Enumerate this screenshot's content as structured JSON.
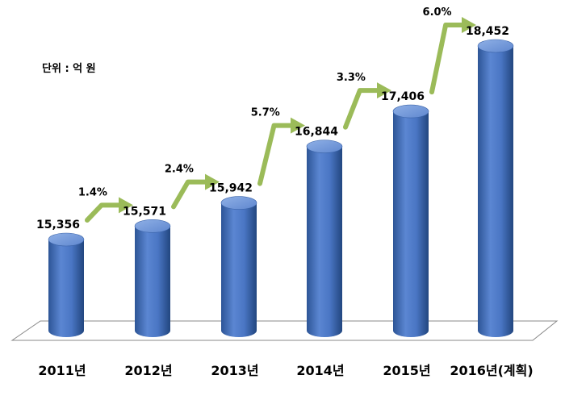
{
  "chart_data": {
    "type": "bar",
    "unit_label": "단위 : 억 원",
    "categories": [
      "2011년",
      "2012년",
      "2013년",
      "2014년",
      "2015년",
      "2016년(계획)"
    ],
    "values": [
      15356,
      15571,
      15942,
      16844,
      17406,
      18452
    ],
    "value_labels": [
      "15,356",
      "15,571",
      "15,942",
      "16,844",
      "17,406",
      "18,452"
    ],
    "growth_labels": [
      "1.4%",
      "2.4%",
      "5.7%",
      "3.3%",
      "6.0%"
    ],
    "colors": {
      "bar": "#4472c4",
      "bar_dark": "#2b4f8f",
      "bar_light": "#7fa0dc",
      "arrow": "#9bbb59",
      "floor": "#ffffff"
    }
  }
}
